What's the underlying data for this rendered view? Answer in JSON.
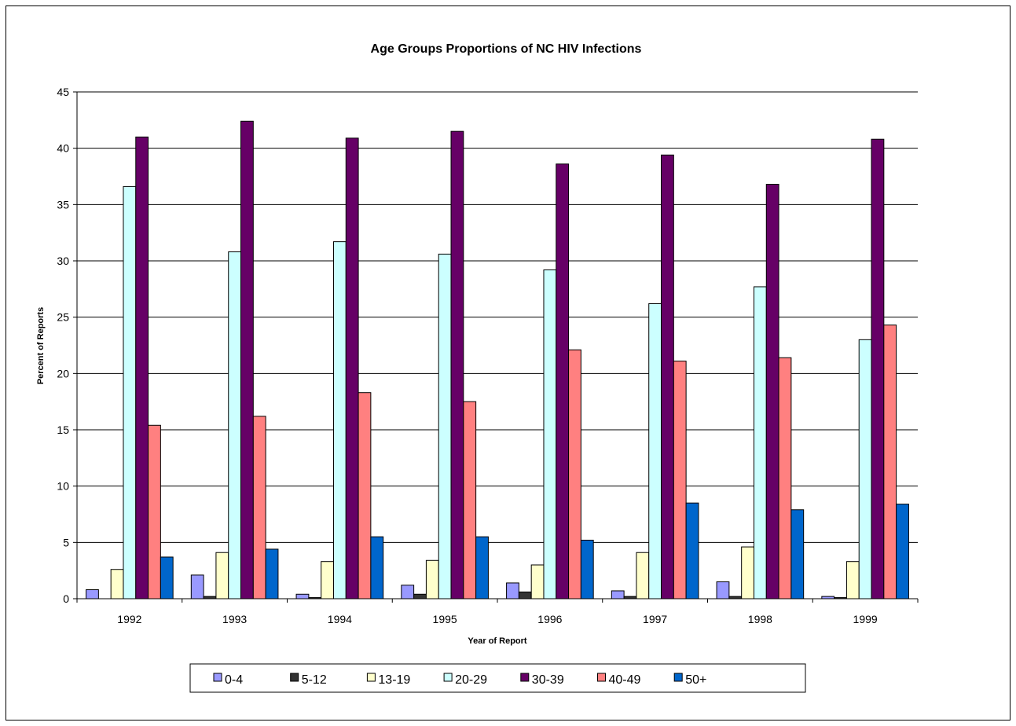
{
  "chart_data": {
    "type": "bar",
    "title": "Age Groups Proportions of NC HIV Infections",
    "xlabel": "Year of Report",
    "ylabel": "Percent of Reports",
    "ylim": [
      0,
      45
    ],
    "yticks": [
      0,
      5,
      10,
      15,
      20,
      25,
      30,
      35,
      40,
      45
    ],
    "grid": true,
    "legend_position": "bottom",
    "categories": [
      "1992",
      "1993",
      "1994",
      "1995",
      "1996",
      "1997",
      "1998",
      "1999"
    ],
    "series": [
      {
        "name": "0-4",
        "color": "#9999ff",
        "values": [
          0.8,
          2.1,
          0.4,
          1.2,
          1.4,
          0.7,
          1.5,
          0.2
        ]
      },
      {
        "name": "5-12",
        "color": "#333333",
        "values": [
          0.0,
          0.2,
          0.1,
          0.4,
          0.6,
          0.2,
          0.2,
          0.1
        ]
      },
      {
        "name": "13-19",
        "color": "#ffffcc",
        "values": [
          2.6,
          4.1,
          3.3,
          3.4,
          3.0,
          4.1,
          4.6,
          3.3
        ]
      },
      {
        "name": "20-29",
        "color": "#ccffff",
        "values": [
          36.6,
          30.8,
          31.7,
          30.6,
          29.2,
          26.2,
          27.7,
          23.0
        ]
      },
      {
        "name": "30-39",
        "color": "#660066",
        "values": [
          41.0,
          42.4,
          40.9,
          41.5,
          38.6,
          39.4,
          36.8,
          40.8
        ]
      },
      {
        "name": "40-49",
        "color": "#ff8080",
        "values": [
          15.4,
          16.2,
          18.3,
          17.5,
          22.1,
          21.1,
          21.4,
          24.3
        ]
      },
      {
        "name": "50+",
        "color": "#0066cc",
        "values": [
          3.7,
          4.4,
          5.5,
          5.5,
          5.2,
          8.5,
          7.9,
          8.4
        ]
      }
    ]
  }
}
